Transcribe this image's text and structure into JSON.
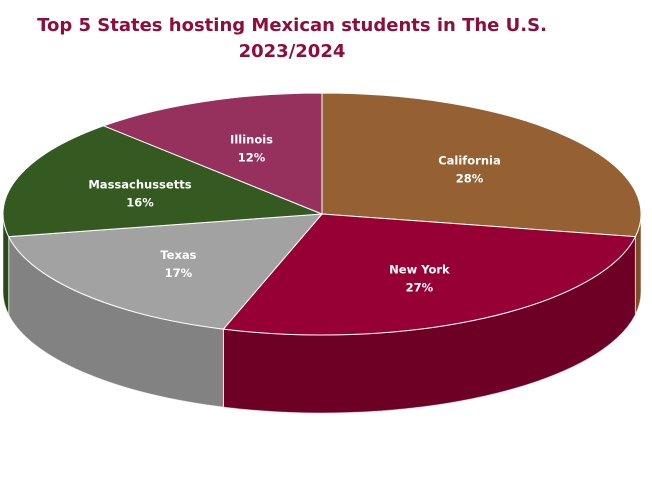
{
  "title_line1": "Top 5 States hosting Mexican students in The U.S.",
  "title_line2": "2023/2024",
  "chart_data": {
    "type": "pie",
    "title": "Top 5 States hosting Mexican students in The U.S. 2023/2024",
    "legend": "none",
    "slices": [
      {
        "label": "California",
        "value": 28,
        "value_label": "28%",
        "color": "#956133",
        "side_dark": "#5e3a1b",
        "label_color": "#ffffff"
      },
      {
        "label": "New York",
        "value": 27,
        "value_label": "27%",
        "color": "#960035",
        "side_dark": "#3f0014",
        "label_color": "#ffffff"
      },
      {
        "label": "Texas",
        "value": 17,
        "value_label": "17%",
        "color": "#a2a2a2",
        "side_dark": "#5c5c5c",
        "label_color": "#ffffff"
      },
      {
        "label": "Massachussetts",
        "value": 16,
        "value_label": "16%",
        "color": "#355a21",
        "side_dark": "#1e3612",
        "label_color": "#ffffff"
      },
      {
        "label": "Illinois",
        "value": 12,
        "value_label": "12%",
        "color": "#96305d",
        "side_dark": "#5a1a37",
        "label_color": "#ffffff"
      }
    ]
  }
}
